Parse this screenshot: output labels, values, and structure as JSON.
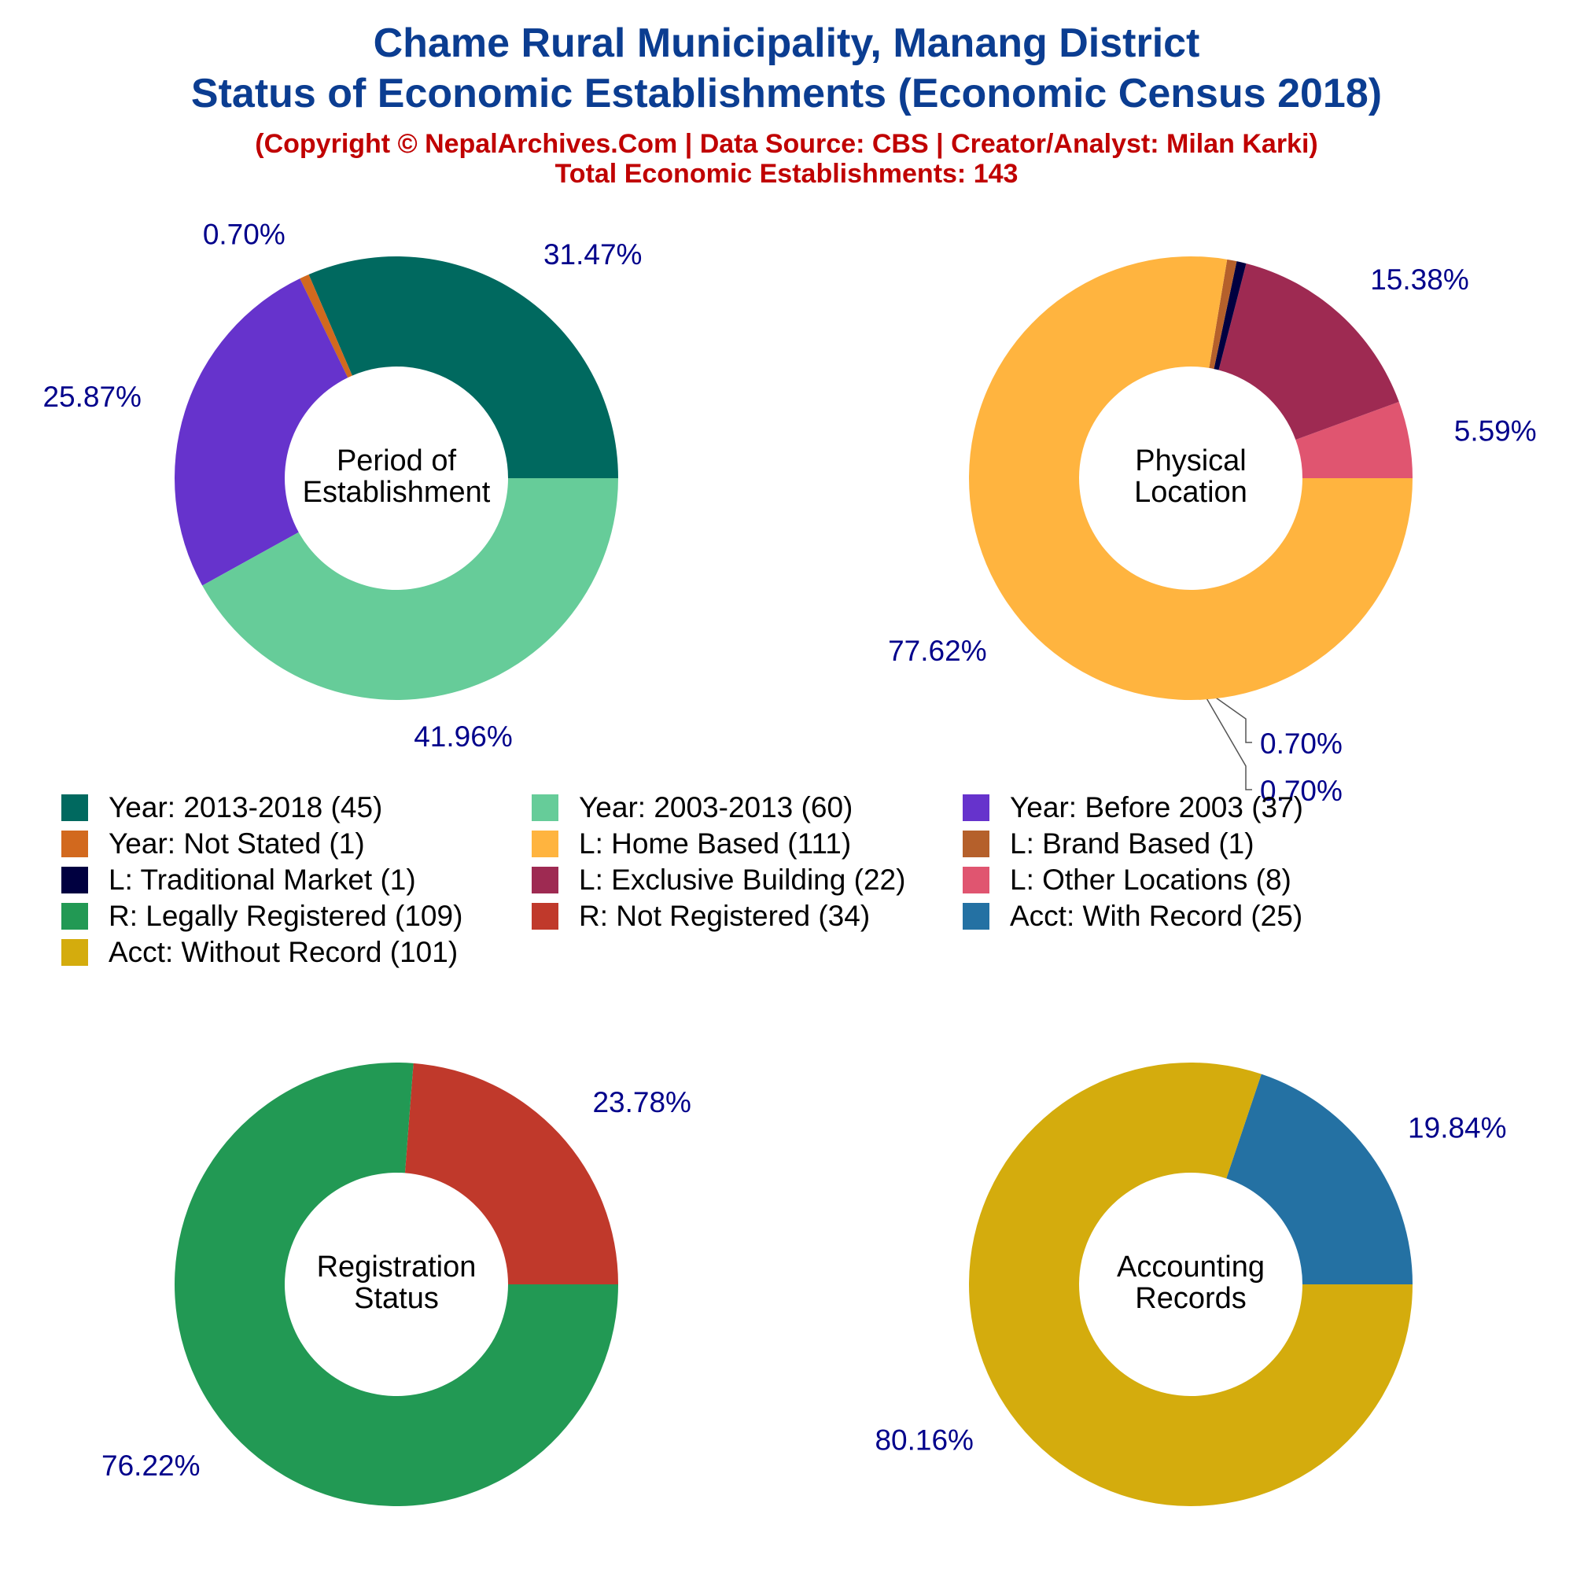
{
  "title": "Chame Rural Municipality, Manang District",
  "subtitle": "Status of Economic Establishments (Economic Census 2018)",
  "copyright": "(Copyright © NepalArchives.Com | Data Source: CBS | Creator/Analyst: Milan Karki)",
  "total": "Total Economic Establishments: 143",
  "colors": {
    "title": "#0b3d91",
    "subtitle": "#c00000",
    "percent_label": "#00008b"
  },
  "chart_data": [
    {
      "type": "pie",
      "center_label": [
        "Period of",
        "Establishment"
      ],
      "slices": [
        {
          "label": "Year: 2013-2018",
          "value": 45,
          "percent": "31.47%",
          "color": "#00695f"
        },
        {
          "label": "Year: Not Stated",
          "value": 1,
          "percent": "0.70%",
          "color": "#d2691e"
        },
        {
          "label": "Year: Before 2003",
          "value": 37,
          "percent": "25.87%",
          "color": "#6633cc"
        },
        {
          "label": "Year: 2003-2013",
          "value": 60,
          "percent": "41.96%",
          "color": "#66cc99"
        }
      ]
    },
    {
      "type": "pie",
      "center_label": [
        "Physical",
        "Location"
      ],
      "slices": [
        {
          "label": "L: Other Locations",
          "value": 8,
          "percent": "5.59%",
          "color": "#e05570"
        },
        {
          "label": "L: Exclusive Building",
          "value": 22,
          "percent": "15.38%",
          "color": "#9e2a52"
        },
        {
          "label": "L: Traditional Market",
          "value": 1,
          "percent": "0.70%",
          "color": "#000040"
        },
        {
          "label": "L: Brand Based",
          "value": 1,
          "percent": "0.70%",
          "color": "#b5602b"
        },
        {
          "label": "L: Home Based",
          "value": 111,
          "percent": "77.62%",
          "color": "#ffb43f"
        }
      ]
    },
    {
      "type": "pie",
      "center_label": [
        "Registration",
        "Status"
      ],
      "slices": [
        {
          "label": "R: Not Registered",
          "value": 34,
          "percent": "23.78%",
          "color": "#c0392b"
        },
        {
          "label": "R: Legally Registered",
          "value": 109,
          "percent": "76.22%",
          "color": "#229954"
        }
      ]
    },
    {
      "type": "pie",
      "center_label": [
        "Accounting",
        "Records"
      ],
      "slices": [
        {
          "label": "Acct: With Record",
          "value": 25,
          "percent": "19.84%",
          "color": "#2471a3"
        },
        {
          "label": "Acct: Without Record",
          "value": 101,
          "percent": "80.16%",
          "color": "#d4ac0d"
        }
      ]
    }
  ],
  "legend": [
    {
      "label": "Year: 2013-2018 (45)",
      "color": "#00695f"
    },
    {
      "label": "Year: 2003-2013 (60)",
      "color": "#66cc99"
    },
    {
      "label": "Year: Before 2003 (37)",
      "color": "#6633cc"
    },
    {
      "label": "Year: Not Stated (1)",
      "color": "#d2691e"
    },
    {
      "label": "L: Home Based (111)",
      "color": "#ffb43f"
    },
    {
      "label": "L: Brand Based (1)",
      "color": "#b5602b"
    },
    {
      "label": "L: Traditional Market (1)",
      "color": "#000040"
    },
    {
      "label": "L: Exclusive Building (22)",
      "color": "#9e2a52"
    },
    {
      "label": "L: Other Locations (8)",
      "color": "#e05570"
    },
    {
      "label": "R: Legally Registered (109)",
      "color": "#229954"
    },
    {
      "label": "R: Not Registered (34)",
      "color": "#c0392b"
    },
    {
      "label": "Acct: With Record (25)",
      "color": "#2471a3"
    },
    {
      "label": "Acct: Without Record (101)",
      "color": "#d4ac0d"
    }
  ]
}
